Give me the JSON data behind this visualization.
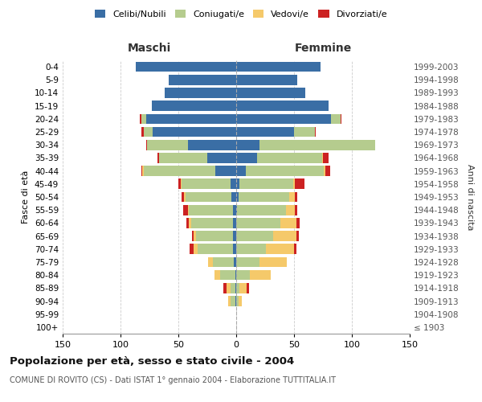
{
  "age_groups": [
    "100+",
    "95-99",
    "90-94",
    "85-89",
    "80-84",
    "75-79",
    "70-74",
    "65-69",
    "60-64",
    "55-59",
    "50-54",
    "45-49",
    "40-44",
    "35-39",
    "30-34",
    "25-29",
    "20-24",
    "15-19",
    "10-14",
    "5-9",
    "0-4"
  ],
  "birth_years": [
    "≤ 1903",
    "1904-1908",
    "1909-1913",
    "1914-1918",
    "1919-1923",
    "1924-1928",
    "1929-1933",
    "1934-1938",
    "1939-1943",
    "1944-1948",
    "1949-1953",
    "1954-1958",
    "1959-1963",
    "1964-1968",
    "1969-1973",
    "1974-1978",
    "1979-1983",
    "1984-1988",
    "1989-1993",
    "1994-1998",
    "1999-2003"
  ],
  "maschi": {
    "celibi": [
      0,
      0,
      1,
      1,
      1,
      2,
      3,
      3,
      3,
      3,
      4,
      5,
      18,
      25,
      42,
      72,
      78,
      73,
      62,
      58,
      87
    ],
    "coniugati": [
      0,
      0,
      4,
      4,
      13,
      18,
      30,
      32,
      36,
      38,
      40,
      42,
      62,
      42,
      35,
      8,
      4,
      0,
      0,
      0,
      0
    ],
    "vedovi": [
      0,
      0,
      2,
      3,
      5,
      4,
      4,
      2,
      2,
      1,
      1,
      1,
      1,
      0,
      0,
      0,
      0,
      0,
      0,
      0,
      0
    ],
    "divorziati": [
      0,
      0,
      0,
      3,
      0,
      0,
      3,
      1,
      2,
      4,
      2,
      2,
      1,
      1,
      1,
      2,
      1,
      0,
      0,
      0,
      0
    ]
  },
  "femmine": {
    "nubili": [
      0,
      0,
      0,
      0,
      0,
      0,
      0,
      0,
      0,
      1,
      2,
      3,
      8,
      18,
      20,
      50,
      82,
      80,
      60,
      53,
      73
    ],
    "coniugate": [
      0,
      0,
      2,
      3,
      12,
      20,
      26,
      32,
      38,
      42,
      44,
      46,
      68,
      56,
      100,
      18,
      8,
      0,
      0,
      0,
      0
    ],
    "vedove": [
      0,
      0,
      3,
      6,
      18,
      24,
      24,
      20,
      14,
      8,
      5,
      2,
      1,
      1,
      0,
      0,
      0,
      0,
      0,
      0,
      0
    ],
    "divorziate": [
      0,
      0,
      0,
      2,
      0,
      0,
      2,
      2,
      3,
      2,
      2,
      8,
      4,
      5,
      0,
      1,
      1,
      0,
      0,
      0,
      0
    ]
  },
  "colors": {
    "celibi": "#3a6ea5",
    "coniugati": "#b5cc8e",
    "vedovi": "#f5c96a",
    "divorziati": "#cc2222"
  },
  "legend_labels": [
    "Celibi/Nubili",
    "Coniugati/e",
    "Vedovi/e",
    "Divorziati/e"
  ],
  "title": "Popolazione per età, sesso e stato civile - 2004",
  "subtitle": "COMUNE DI ROVITO (CS) - Dati ISTAT 1° gennaio 2004 - Elaborazione TUTTITALIA.IT",
  "label_maschi": "Maschi",
  "label_femmine": "Femmine",
  "ylabel_left": "Fasce di età",
  "ylabel_right": "Anni di nascita",
  "xlim": 150,
  "xticks": [
    -150,
    -100,
    -50,
    0,
    50,
    100,
    150
  ],
  "bg_color": "#ffffff",
  "grid_color": "#cccccc"
}
